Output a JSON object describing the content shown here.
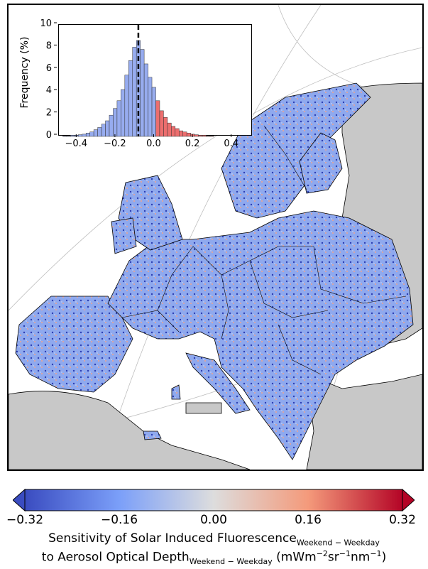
{
  "colors": {
    "land_other": "#c8c8c8",
    "sea": "#ffffff",
    "negative_strong": "#3a4cc0",
    "negative_mid": "#7b9ff9",
    "neutral": "#dddddd",
    "positive_mid": "#f49a7b",
    "positive_strong": "#b40426",
    "median_line": "#000000",
    "hist_neg_fill": "#97acef",
    "hist_pos_fill": "#ec6e6e"
  },
  "map": {
    "projection": "conic (graticule shown)",
    "regions_colored": [
      "Europe"
    ],
    "other_land": "gray"
  },
  "inset_chart": {
    "chart_data": {
      "type": "bar",
      "xlim": [
        -0.5,
        0.5
      ],
      "ylim": [
        0,
        10
      ],
      "ylabel": "Frequency (%)",
      "xticks": [
        "-0.4",
        "-0.2",
        "0.0",
        "0.2",
        "0.4"
      ],
      "yticks": [
        "0",
        "2",
        "4",
        "6",
        "8",
        "10"
      ],
      "bin_width": 0.02,
      "median_line_x": -0.09,
      "bins": [
        {
          "x": -0.47,
          "v": 0.05
        },
        {
          "x": -0.45,
          "v": 0.05
        },
        {
          "x": -0.43,
          "v": 0.1
        },
        {
          "x": -0.41,
          "v": 0.1
        },
        {
          "x": -0.39,
          "v": 0.15
        },
        {
          "x": -0.37,
          "v": 0.2
        },
        {
          "x": -0.35,
          "v": 0.3
        },
        {
          "x": -0.33,
          "v": 0.4
        },
        {
          "x": -0.31,
          "v": 0.6
        },
        {
          "x": -0.29,
          "v": 0.8
        },
        {
          "x": -0.27,
          "v": 1.1
        },
        {
          "x": -0.25,
          "v": 1.4
        },
        {
          "x": -0.23,
          "v": 1.9
        },
        {
          "x": -0.21,
          "v": 2.5
        },
        {
          "x": -0.19,
          "v": 3.2
        },
        {
          "x": -0.17,
          "v": 4.2
        },
        {
          "x": -0.15,
          "v": 5.5
        },
        {
          "x": -0.13,
          "v": 6.8
        },
        {
          "x": -0.11,
          "v": 8.0
        },
        {
          "x": -0.09,
          "v": 8.6
        },
        {
          "x": -0.07,
          "v": 7.8
        },
        {
          "x": -0.05,
          "v": 6.5
        },
        {
          "x": -0.03,
          "v": 5.3
        },
        {
          "x": -0.01,
          "v": 4.4
        },
        {
          "x": 0.01,
          "v": 3.2
        },
        {
          "x": 0.03,
          "v": 2.3
        },
        {
          "x": 0.05,
          "v": 1.7
        },
        {
          "x": 0.07,
          "v": 1.2
        },
        {
          "x": 0.09,
          "v": 0.9
        },
        {
          "x": 0.11,
          "v": 0.7
        },
        {
          "x": 0.13,
          "v": 0.5
        },
        {
          "x": 0.15,
          "v": 0.4
        },
        {
          "x": 0.17,
          "v": 0.3
        },
        {
          "x": 0.19,
          "v": 0.2
        },
        {
          "x": 0.21,
          "v": 0.15
        },
        {
          "x": 0.23,
          "v": 0.1
        },
        {
          "x": 0.25,
          "v": 0.1
        },
        {
          "x": 0.27,
          "v": 0.05
        },
        {
          "x": 0.29,
          "v": 0.05
        }
      ]
    }
  },
  "colorbar": {
    "ticks": [
      "−0.32",
      "−0.16",
      "0.00",
      "0.16",
      "0.32"
    ],
    "tick_values": [
      -0.32,
      -0.16,
      0.0,
      0.16,
      0.32
    ],
    "vmin": -0.32,
    "vmax": 0.32,
    "extend": "both",
    "label_line1_main": "Sensitivity of Solar Induced Fluorescence",
    "label_line1_sub": "Weekend − Weekday",
    "label_line2_main": "to Aerosol Optical Depth",
    "label_line2_sub": "Weekend − Weekday",
    "label_line2_units_prefix": "(mWm",
    "label_line2_units_sup1": "−2",
    "label_line2_units_mid1": "sr",
    "label_line2_units_sup2": "−1",
    "label_line2_units_mid2": "nm",
    "label_line2_units_sup3": "−1",
    "label_line2_units_suffix": ")"
  }
}
